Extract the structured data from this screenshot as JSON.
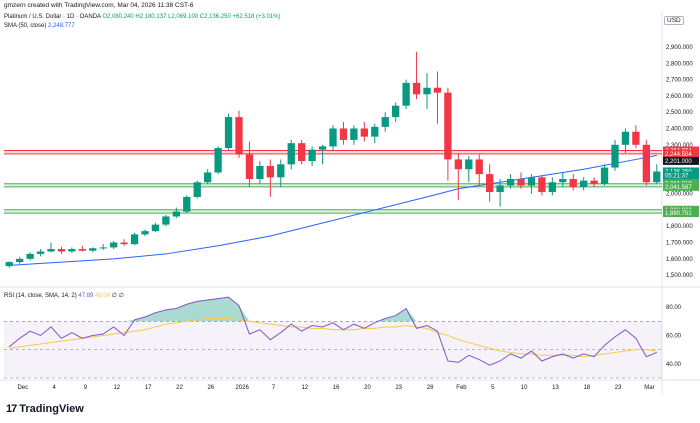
{
  "header": {
    "caption": "gmzern created with TradingView.com, Mar 04, 2026 11:38 CST-6"
  },
  "legend": {
    "symbol": "Platinum / U.S. Dollar · 1D · OANDA",
    "ohlc": "O2,080.240  H2,180.137  L2,069.100  C2,136.250  +62.518 (+3.01%)",
    "sma_label": "SMA (50, close)",
    "sma_value": "2,248.777",
    "currency": "USD"
  },
  "rsi_legend": {
    "label": "RSI (14, close, SMA, 14, 2)",
    "rsi_value": "47.89",
    "sma_value": "49.08",
    "extra": "∅ ∅"
  },
  "footer": {
    "brand": "TradingView",
    "logo": "17"
  },
  "chart_data": {
    "type": "candlestick",
    "price_axis": {
      "ticks": [
        "2,900.000",
        "2,800.000",
        "2,700.000",
        "2,600.000",
        "2,500.000",
        "2,400.000",
        "2,300.000",
        "2,200.000",
        "2,100.000",
        "2,000.000",
        "1,900.000",
        "1,800.000",
        "1,700.000",
        "1,600.000",
        "1,500.000"
      ],
      "range": [
        1470,
        2980
      ]
    },
    "price_tags": [
      {
        "label": "2,264.894",
        "price": 2264.894,
        "color": "#f23645"
      },
      {
        "label": "2,244.504",
        "price": 2244.504,
        "color": "#f23645"
      },
      {
        "label": "2,201.000",
        "price": 2201.0,
        "color": "#131722"
      },
      {
        "label": "2,136.250",
        "price": 2136.25,
        "color": "#089981"
      },
      {
        "label": "05:21:37",
        "price": 2110,
        "color": "#089981"
      },
      {
        "label": "2,061.019",
        "price": 2061.019,
        "color": "#4caf50"
      },
      {
        "label": "2,041.587",
        "price": 2041.587,
        "color": "#4caf50"
      },
      {
        "label": "1,900.933",
        "price": 1900.933,
        "color": "#4caf50"
      },
      {
        "label": "1,880.751",
        "price": 1880.751,
        "color": "#4caf50"
      }
    ],
    "zones": [
      {
        "from": 2244.504,
        "to": 2264.894,
        "color": "#f23645"
      },
      {
        "from": 2041.587,
        "to": 2061.019,
        "color": "#4caf50"
      },
      {
        "from": 1880.751,
        "to": 1900.933,
        "color": "#4caf50"
      }
    ],
    "x_labels": [
      "Dec",
      "4",
      "9",
      "12",
      "17",
      "22",
      "26",
      "2026",
      "7",
      "12",
      "16",
      "20",
      "23",
      "28",
      "Feb",
      "5",
      "10",
      "13",
      "18",
      "23",
      "Mar"
    ],
    "candles": [
      [
        1555,
        1585,
        1545,
        1580
      ],
      [
        1580,
        1610,
        1570,
        1600
      ],
      [
        1600,
        1640,
        1590,
        1630
      ],
      [
        1630,
        1660,
        1615,
        1645
      ],
      [
        1645,
        1700,
        1640,
        1660
      ],
      [
        1660,
        1675,
        1630,
        1645
      ],
      [
        1645,
        1670,
        1635,
        1660
      ],
      [
        1660,
        1680,
        1645,
        1650
      ],
      [
        1650,
        1670,
        1640,
        1665
      ],
      [
        1665,
        1690,
        1655,
        1670
      ],
      [
        1670,
        1710,
        1660,
        1700
      ],
      [
        1700,
        1720,
        1680,
        1690
      ],
      [
        1690,
        1760,
        1685,
        1750
      ],
      [
        1750,
        1780,
        1740,
        1770
      ],
      [
        1770,
        1820,
        1765,
        1810
      ],
      [
        1810,
        1870,
        1800,
        1860
      ],
      [
        1860,
        1915,
        1850,
        1890
      ],
      [
        1890,
        1990,
        1880,
        1980
      ],
      [
        1980,
        2080,
        1970,
        2070
      ],
      [
        2070,
        2150,
        2060,
        2130
      ],
      [
        2130,
        2290,
        2120,
        2280
      ],
      [
        2280,
        2490,
        2270,
        2470
      ],
      [
        2470,
        2510,
        2220,
        2240
      ],
      [
        2240,
        2320,
        2040,
        2090
      ],
      [
        2090,
        2200,
        2060,
        2170
      ],
      [
        2170,
        2210,
        1980,
        2100
      ],
      [
        2100,
        2210,
        2040,
        2180
      ],
      [
        2180,
        2330,
        2150,
        2310
      ],
      [
        2310,
        2330,
        2180,
        2200
      ],
      [
        2200,
        2290,
        2170,
        2270
      ],
      [
        2270,
        2300,
        2180,
        2290
      ],
      [
        2290,
        2420,
        2260,
        2400
      ],
      [
        2400,
        2440,
        2300,
        2330
      ],
      [
        2330,
        2420,
        2300,
        2400
      ],
      [
        2400,
        2440,
        2320,
        2350
      ],
      [
        2350,
        2430,
        2310,
        2410
      ],
      [
        2410,
        2500,
        2380,
        2470
      ],
      [
        2470,
        2560,
        2440,
        2540
      ],
      [
        2540,
        2700,
        2520,
        2680
      ],
      [
        2680,
        2870,
        2580,
        2610
      ],
      [
        2610,
        2740,
        2520,
        2650
      ],
      [
        2650,
        2750,
        2430,
        2620
      ],
      [
        2620,
        2650,
        2080,
        2210
      ],
      [
        2210,
        2250,
        1960,
        2150
      ],
      [
        2150,
        2230,
        2070,
        2210
      ],
      [
        2210,
        2240,
        2050,
        2120
      ],
      [
        2120,
        2180,
        1950,
        2010
      ],
      [
        2010,
        2090,
        1920,
        2050
      ],
      [
        2050,
        2120,
        2030,
        2090
      ],
      [
        2090,
        2130,
        2030,
        2050
      ],
      [
        2050,
        2120,
        2000,
        2100
      ],
      [
        2100,
        2110,
        1990,
        2010
      ],
      [
        2010,
        2100,
        1990,
        2070
      ],
      [
        2070,
        2130,
        2040,
        2090
      ],
      [
        2090,
        2120,
        2020,
        2040
      ],
      [
        2040,
        2100,
        2020,
        2080
      ],
      [
        2080,
        2100,
        2040,
        2060
      ],
      [
        2060,
        2180,
        2050,
        2160
      ],
      [
        2160,
        2330,
        2140,
        2300
      ],
      [
        2300,
        2400,
        2250,
        2380
      ],
      [
        2380,
        2420,
        2280,
        2300
      ],
      [
        2300,
        2330,
        2050,
        2070
      ],
      [
        2070,
        2180,
        2060,
        2136
      ]
    ],
    "sma_line": [
      [
        0,
        1560
      ],
      [
        5,
        1580
      ],
      [
        10,
        1600
      ],
      [
        15,
        1630
      ],
      [
        20,
        1680
      ],
      [
        25,
        1740
      ],
      [
        30,
        1820
      ],
      [
        35,
        1900
      ],
      [
        40,
        1980
      ],
      [
        43,
        2030
      ],
      [
        46,
        2060
      ],
      [
        50,
        2100
      ],
      [
        55,
        2150
      ],
      [
        60,
        2210
      ],
      [
        62,
        2235
      ]
    ],
    "rsi": {
      "range": [
        30,
        85
      ],
      "ticks": [
        "80.00",
        "60.00",
        "40.00"
      ],
      "bands": [
        70,
        50,
        30
      ],
      "rsi_line": [
        52,
        58,
        63,
        60,
        66,
        58,
        62,
        58,
        60,
        61,
        66,
        60,
        71,
        73,
        76,
        78,
        79,
        82,
        84,
        85,
        86,
        87,
        81,
        61,
        64,
        57,
        62,
        68,
        63,
        67,
        66,
        69,
        64,
        68,
        65,
        69,
        72,
        74,
        79,
        65,
        67,
        63,
        42,
        41,
        46,
        43,
        39,
        42,
        47,
        44,
        49,
        42,
        45,
        47,
        44,
        47,
        45,
        53,
        59,
        64,
        58,
        45,
        48
      ],
      "sma_line": [
        51,
        52,
        53,
        54,
        55,
        56,
        57,
        58,
        59,
        60,
        61,
        62,
        63,
        64,
        66,
        68,
        69,
        70,
        71,
        72,
        72,
        72,
        71,
        70,
        69,
        68,
        67,
        66,
        66,
        65,
        65,
        64,
        64,
        64,
        65,
        65,
        66,
        66,
        67,
        66,
        65,
        62,
        60,
        57,
        55,
        53,
        51,
        49,
        48,
        47,
        47,
        46,
        46,
        46,
        46,
        45,
        46,
        47,
        48,
        49,
        50,
        50,
        49
      ]
    }
  }
}
